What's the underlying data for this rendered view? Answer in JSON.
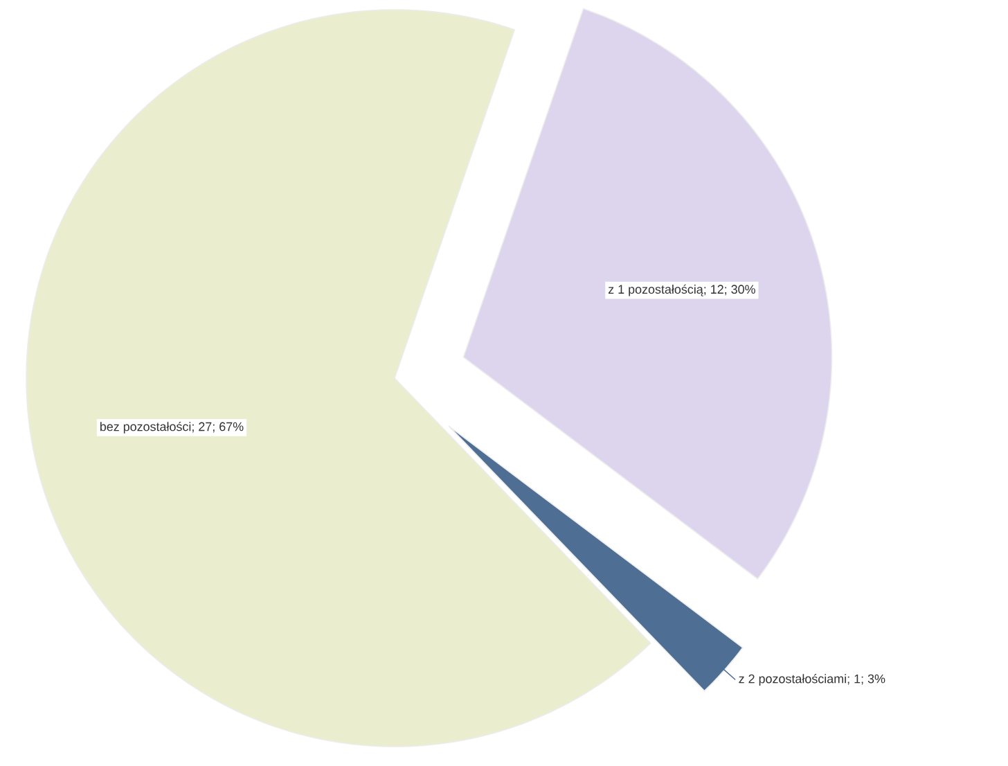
{
  "chart_data": {
    "type": "pie",
    "categories": [
      "z 1 pozostałością",
      "z 2 pozostałościami",
      "bez pozostałości"
    ],
    "values": [
      12,
      1,
      27
    ],
    "value_labels": [
      "; 12; 30%",
      "; 1; 3%",
      "; 27; 67%"
    ],
    "colors": [
      "#ddd5ee",
      "#4f6e93",
      "#eaeecf"
    ]
  }
}
